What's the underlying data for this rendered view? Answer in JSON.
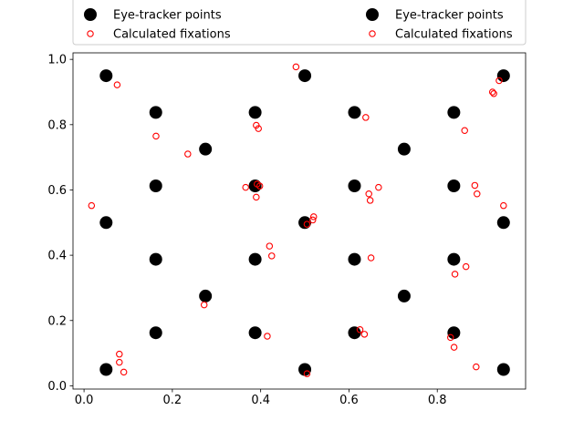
{
  "chart_data": {
    "type": "scatter",
    "title": "",
    "xlabel": "",
    "ylabel": "",
    "xlim": [
      -0.025,
      1.0
    ],
    "ylim": [
      -0.01,
      1.02
    ],
    "grid": false,
    "x_ticks": [
      0.0,
      0.2,
      0.4,
      0.6,
      0.8
    ],
    "x_tick_labels": [
      "0.0",
      "0.2",
      "0.4",
      "0.6",
      "0.8"
    ],
    "y_ticks": [
      0.0,
      0.2,
      0.4,
      0.6,
      0.8,
      1.0
    ],
    "y_tick_labels": [
      "0.0",
      "0.2",
      "0.4",
      "0.6",
      "0.8",
      "1.0"
    ],
    "legend": {
      "placement": "top",
      "columns": 2,
      "entries": [
        {
          "label": "Eye-tracker points",
          "series": 0
        },
        {
          "label": "Calculated fixations",
          "series": 1
        },
        {
          "label": "Eye-tracker points",
          "series": 0
        },
        {
          "label": "Calculated fixations",
          "series": 1
        }
      ]
    },
    "series": [
      {
        "name": "Eye-tracker points",
        "marker": "filled-circle",
        "color": "#000000",
        "points": [
          [
            0.05,
            0.95
          ],
          [
            0.5,
            0.95
          ],
          [
            0.95,
            0.95
          ],
          [
            0.1625,
            0.8375
          ],
          [
            0.3875,
            0.8375
          ],
          [
            0.6125,
            0.8375
          ],
          [
            0.8375,
            0.8375
          ],
          [
            0.275,
            0.725
          ],
          [
            0.725,
            0.725
          ],
          [
            0.1625,
            0.6125
          ],
          [
            0.3875,
            0.6125
          ],
          [
            0.6125,
            0.6125
          ],
          [
            0.8375,
            0.6125
          ],
          [
            0.05,
            0.5
          ],
          [
            0.5,
            0.5
          ],
          [
            0.95,
            0.5
          ],
          [
            0.1625,
            0.3875
          ],
          [
            0.3875,
            0.3875
          ],
          [
            0.6125,
            0.3875
          ],
          [
            0.8375,
            0.3875
          ],
          [
            0.275,
            0.275
          ],
          [
            0.725,
            0.275
          ],
          [
            0.1625,
            0.1625
          ],
          [
            0.3875,
            0.1625
          ],
          [
            0.6125,
            0.1625
          ],
          [
            0.8375,
            0.1625
          ],
          [
            0.05,
            0.05
          ],
          [
            0.5,
            0.05
          ],
          [
            0.95,
            0.05
          ]
        ]
      },
      {
        "name": "Calculated fixations",
        "marker": "open-circle",
        "color": "#ff0000",
        "points": [
          [
            0.075,
            0.922
          ],
          [
            0.48,
            0.977
          ],
          [
            0.925,
            0.9
          ],
          [
            0.928,
            0.895
          ],
          [
            0.94,
            0.935
          ],
          [
            0.163,
            0.765
          ],
          [
            0.235,
            0.71
          ],
          [
            0.39,
            0.798
          ],
          [
            0.395,
            0.788
          ],
          [
            0.638,
            0.822
          ],
          [
            0.862,
            0.782
          ],
          [
            0.366,
            0.608
          ],
          [
            0.392,
            0.618
          ],
          [
            0.398,
            0.612
          ],
          [
            0.39,
            0.578
          ],
          [
            0.645,
            0.588
          ],
          [
            0.648,
            0.568
          ],
          [
            0.667,
            0.608
          ],
          [
            0.885,
            0.614
          ],
          [
            0.89,
            0.588
          ],
          [
            0.017,
            0.552
          ],
          [
            0.95,
            0.552
          ],
          [
            0.505,
            0.495
          ],
          [
            0.518,
            0.508
          ],
          [
            0.52,
            0.518
          ],
          [
            0.42,
            0.428
          ],
          [
            0.425,
            0.398
          ],
          [
            0.65,
            0.392
          ],
          [
            0.865,
            0.365
          ],
          [
            0.84,
            0.342
          ],
          [
            0.272,
            0.248
          ],
          [
            0.415,
            0.152
          ],
          [
            0.625,
            0.172
          ],
          [
            0.635,
            0.158
          ],
          [
            0.83,
            0.148
          ],
          [
            0.838,
            0.118
          ],
          [
            0.08,
            0.097
          ],
          [
            0.08,
            0.072
          ],
          [
            0.09,
            0.042
          ],
          [
            0.505,
            0.037
          ],
          [
            0.888,
            0.058
          ]
        ]
      }
    ]
  }
}
